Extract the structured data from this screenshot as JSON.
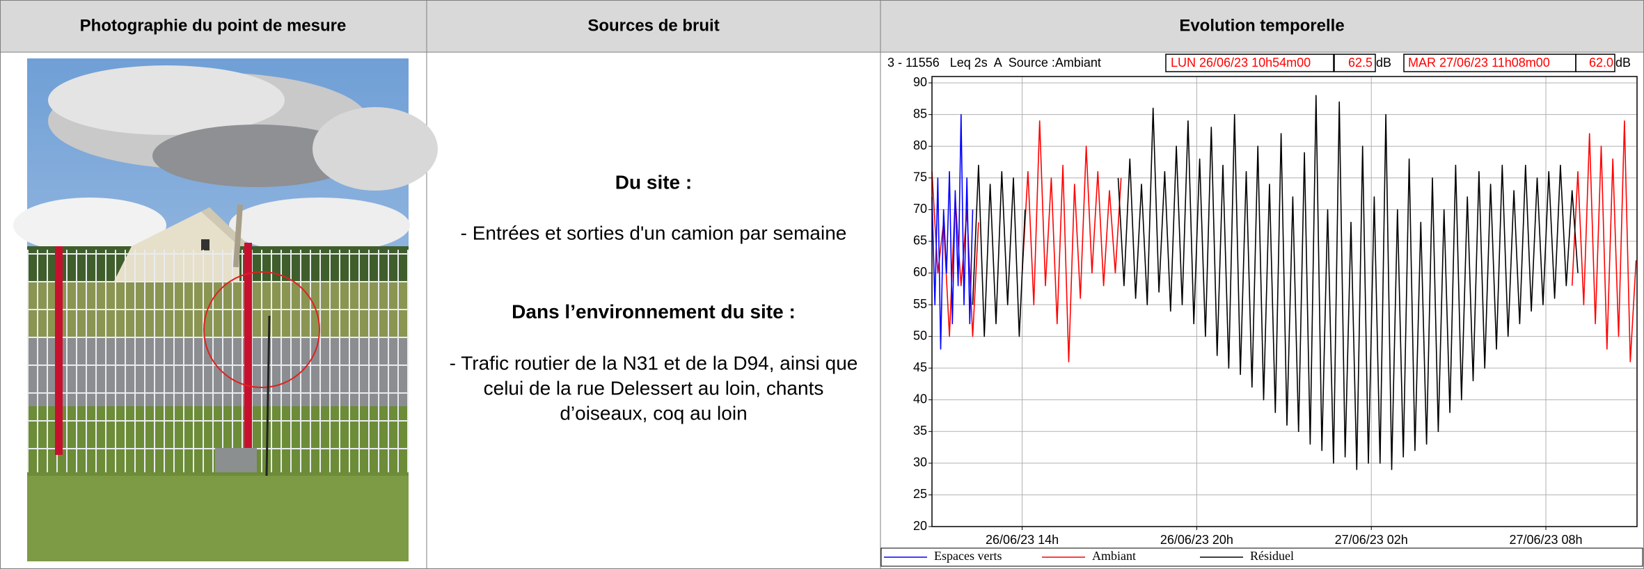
{
  "table": {
    "headers": [
      "Photographie du point de mesure",
      "Sources de bruit",
      "Evolution temporelle"
    ],
    "site_title": "Du site :",
    "site_text": "- Entrées et sorties d'un camion par semaine",
    "env_title": "Dans l’environnement du site :",
    "env_lines": [
      "- Trafic routier de la N31 et de la D94, ainsi que",
      "celui de la rue Delessert au loin, chants",
      "d’oiseaux, coq au loin"
    ]
  },
  "chart_data": {
    "type": "line",
    "info": "3 - 11556   Leq 2s  A  Source :Ambiant",
    "start": "LUN 26/06/23 10h54m00",
    "start_level": "62.5",
    "end": "MAR 27/06/23 11h08m00",
    "end_level": "62.0",
    "unit": "dB",
    "xlim": [
      10.9,
      35.133
    ],
    "xticks": [
      {
        "value": 14,
        "label": "26/06/23 14h"
      },
      {
        "value": 20,
        "label": "26/06/23 20h"
      },
      {
        "value": 26,
        "label": "27/06/23 02h"
      },
      {
        "value": 32,
        "label": "27/06/23 08h"
      }
    ],
    "ylim": [
      20,
      91
    ],
    "yticks": [
      20,
      25,
      30,
      35,
      40,
      45,
      50,
      55,
      60,
      65,
      70,
      75,
      80,
      85,
      90
    ],
    "grid": true,
    "series": [
      {
        "name": "Espaces verts",
        "color": "#0000ff",
        "x": [
          10.9,
          11.0,
          11.1,
          11.2,
          11.3,
          11.4,
          11.5,
          11.6,
          11.7,
          11.8,
          11.9,
          12.0,
          12.1,
          12.2,
          12.3
        ],
        "values": [
          72,
          55,
          75,
          48,
          70,
          60,
          76,
          52,
          73,
          58,
          85,
          55,
          75,
          52,
          70
        ]
      },
      {
        "name": "Ambiant",
        "color": "#ff0000",
        "x": [
          10.9,
          11.1,
          11.3,
          11.5,
          11.7,
          11.9,
          12.1,
          12.3,
          12.5,
          13.2,
          14.0,
          14.2,
          14.4,
          14.6,
          14.8,
          15.0,
          15.2,
          15.4,
          15.6,
          15.8,
          16.0,
          16.2,
          16.4,
          16.6,
          16.8,
          17.0,
          17.2,
          17.4,
          25,
          32.9,
          33.1,
          33.3,
          33.5,
          33.7,
          33.9,
          34.1,
          34.3,
          34.5,
          34.7,
          34.9,
          35.1
        ],
        "values": [
          76,
          60,
          68,
          50,
          72,
          58,
          70,
          50,
          68,
          null,
          60,
          76,
          55,
          84,
          58,
          75,
          52,
          77,
          46,
          74,
          56,
          80,
          60,
          76,
          58,
          73,
          60,
          75,
          null,
          58,
          76,
          55,
          82,
          52,
          80,
          48,
          78,
          50,
          84,
          46,
          62
        ]
      },
      {
        "name": "Résiduel",
        "color": "#000000",
        "x": [
          12.3,
          12.5,
          12.7,
          12.9,
          13.1,
          13.3,
          13.5,
          13.7,
          13.9,
          14.1,
          15.8,
          17.3,
          17.5,
          17.7,
          17.9,
          18.1,
          18.3,
          18.5,
          18.7,
          18.9,
          19.1,
          19.3,
          19.5,
          19.7,
          19.9,
          20.1,
          20.3,
          20.5,
          20.7,
          20.9,
          21.1,
          21.3,
          21.5,
          21.7,
          21.9,
          22.1,
          22.3,
          22.5,
          22.7,
          22.9,
          23.1,
          23.3,
          23.5,
          23.7,
          23.9,
          24.1,
          24.3,
          24.5,
          24.7,
          24.9,
          25.1,
          25.3,
          25.5,
          25.7,
          25.9,
          26.1,
          26.3,
          26.5,
          26.7,
          26.9,
          27.1,
          27.3,
          27.5,
          27.7,
          27.9,
          28.1,
          28.3,
          28.5,
          28.7,
          28.9,
          29.1,
          29.3,
          29.5,
          29.7,
          29.9,
          30.1,
          30.3,
          30.5,
          30.7,
          30.9,
          31.1,
          31.3,
          31.5,
          31.7,
          31.9,
          32.1,
          32.3,
          32.5,
          32.7,
          32.9,
          33.1
        ],
        "values": [
          55,
          77,
          50,
          74,
          52,
          76,
          55,
          75,
          50,
          70,
          null,
          75,
          58,
          78,
          56,
          74,
          55,
          86,
          57,
          76,
          54,
          80,
          55,
          84,
          52,
          78,
          50,
          83,
          47,
          77,
          45,
          85,
          44,
          76,
          42,
          80,
          40,
          74,
          38,
          82,
          36,
          72,
          35,
          79,
          33,
          88,
          32,
          70,
          30,
          87,
          31,
          68,
          29,
          80,
          30,
          72,
          30,
          85,
          29,
          70,
          31,
          78,
          32,
          68,
          33,
          75,
          35,
          70,
          38,
          77,
          40,
          72,
          43,
          76,
          45,
          74,
          48,
          77,
          50,
          73,
          52,
          77,
          54,
          75,
          55,
          76,
          56,
          77,
          58,
          73,
          60
        ]
      }
    ]
  }
}
